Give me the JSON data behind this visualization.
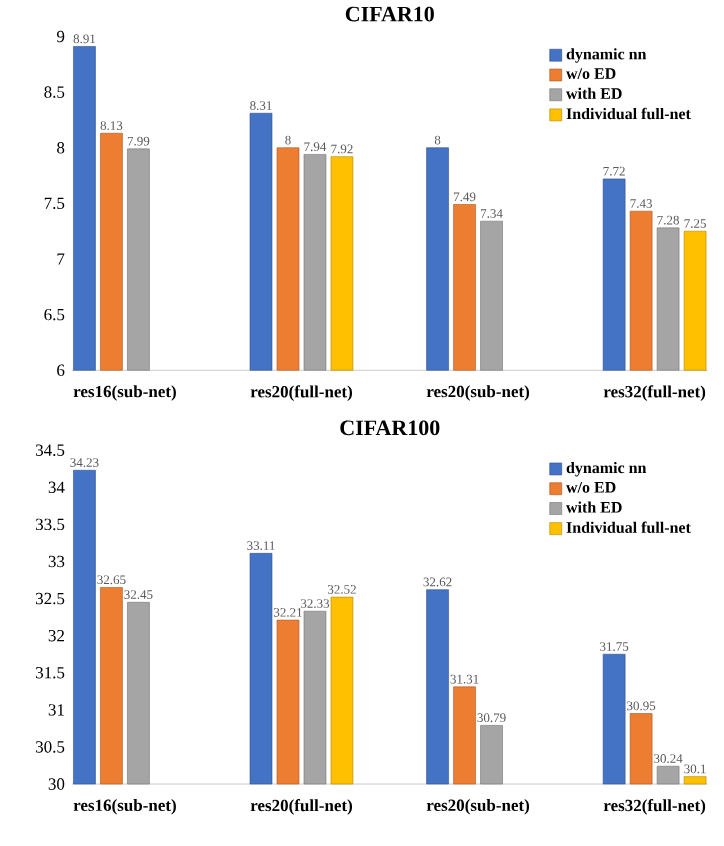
{
  "chart_data": [
    {
      "type": "bar",
      "title": "CIFAR10",
      "categories": [
        "res16(sub-net)",
        "res20(full-net)",
        "res20(sub-net)",
        "res32(full-net)"
      ],
      "series": [
        {
          "name": "dynamic nn",
          "color": "#4472c4",
          "values": [
            8.91,
            8.31,
            8,
            7.72
          ]
        },
        {
          "name": "w/o ED",
          "color": "#ed7d31",
          "values": [
            8.13,
            8,
            7.49,
            7.43
          ]
        },
        {
          "name": "with ED",
          "color": "#a5a5a5",
          "values": [
            7.99,
            7.94,
            7.34,
            7.28
          ]
        },
        {
          "name": "Individual full-net",
          "color": "#ffc000",
          "values": [
            null,
            7.92,
            null,
            7.25
          ]
        }
      ],
      "ylim": [
        6,
        9
      ],
      "yticks": [
        6,
        6.5,
        7,
        7.5,
        8,
        8.5,
        9
      ],
      "data_labels": true,
      "legend": "top right"
    },
    {
      "type": "bar",
      "title": "CIFAR100",
      "categories": [
        "res16(sub-net)",
        "res20(full-net)",
        "res20(sub-net)",
        "res32(full-net)"
      ],
      "series": [
        {
          "name": "dynamic nn",
          "color": "#4472c4",
          "values": [
            34.23,
            33.11,
            32.62,
            31.75
          ]
        },
        {
          "name": "w/o ED",
          "color": "#ed7d31",
          "values": [
            32.65,
            32.21,
            31.31,
            30.95
          ]
        },
        {
          "name": "with ED",
          "color": "#a5a5a5",
          "values": [
            32.45,
            32.33,
            30.79,
            30.24
          ]
        },
        {
          "name": "Individual full-net",
          "color": "#ffc000",
          "values": [
            null,
            32.52,
            null,
            30.1
          ]
        }
      ],
      "ylim": [
        30,
        34.5
      ],
      "yticks": [
        30,
        30.5,
        31,
        31.5,
        32,
        32.5,
        33,
        33.5,
        34,
        34.5
      ],
      "data_labels": true,
      "legend": "top right"
    }
  ]
}
